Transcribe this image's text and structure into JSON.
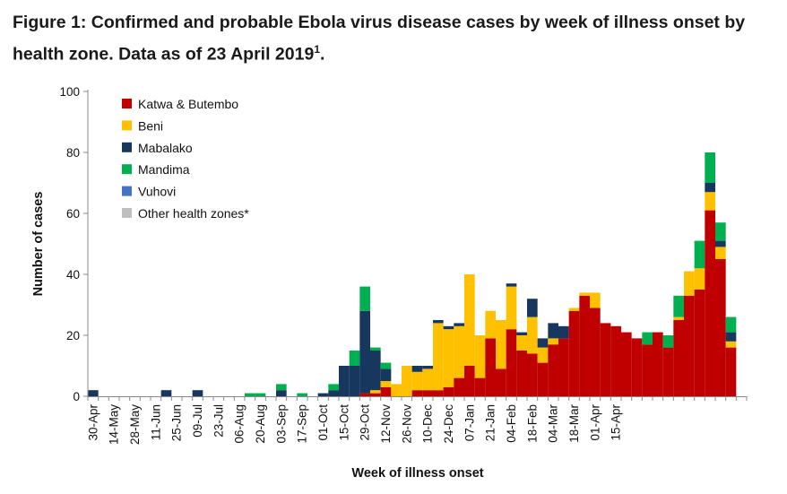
{
  "figure": {
    "title_main": "Figure 1: Confirmed and probable Ebola virus disease cases by week of illness onset by health zone. Data as of 23 April 2019",
    "title_sup": "1",
    "title_end": "."
  },
  "chart_data": {
    "type": "bar",
    "stacked": true,
    "xlabel": "Week of illness onset",
    "ylabel": "Number of cases",
    "ylim": [
      0,
      100
    ],
    "yticks": [
      0,
      20,
      40,
      60,
      80,
      100
    ],
    "tick_labels": [
      "30-Apr",
      "14-May",
      "28-May",
      "11-Jun",
      "25-Jun",
      "09-Jul",
      "23-Jul",
      "06-Aug",
      "20-Aug",
      "03-Sep",
      "17-Sep",
      "01-Oct",
      "15-Oct",
      "29-Oct",
      "12-Nov",
      "26-Nov",
      "10-Dec",
      "24-Dec",
      "07-Jan",
      "21-Jan",
      "04-Feb",
      "18-Feb",
      "04-Mar",
      "18-Mar",
      "01-Apr",
      "15-Apr"
    ],
    "tick_every": 2,
    "legend_position": "top-left",
    "series": [
      {
        "name": "Katwa & Butembo",
        "color": "#c00000",
        "values": [
          0,
          0,
          0,
          0,
          0,
          0,
          0,
          0,
          0,
          0,
          0,
          0,
          0,
          0,
          0,
          0,
          0,
          0,
          0,
          0,
          0,
          0,
          0,
          0,
          0,
          0,
          1,
          1,
          3,
          0,
          0,
          2,
          2,
          2,
          3,
          6,
          10,
          6,
          19,
          9,
          22,
          15,
          14,
          11,
          17,
          19,
          28,
          33,
          29,
          24,
          23,
          21,
          19,
          17,
          21,
          16,
          25,
          33,
          35,
          61,
          45,
          16,
          0
        ]
      },
      {
        "name": "Beni",
        "color": "#ffc000",
        "values": [
          0,
          0,
          0,
          0,
          0,
          0,
          0,
          0,
          0,
          0,
          0,
          0,
          0,
          0,
          0,
          0,
          0,
          0,
          0,
          0,
          0,
          0,
          0,
          0,
          0,
          0,
          0,
          1,
          2,
          4,
          10,
          6,
          7,
          22,
          19,
          17,
          30,
          14,
          9,
          16,
          14,
          5,
          12,
          5,
          2,
          0,
          1,
          1,
          5,
          0,
          0,
          0,
          0,
          0,
          0,
          0,
          1,
          8,
          7,
          6,
          4,
          2,
          0
        ]
      },
      {
        "name": "Mabalako",
        "color": "#17375e",
        "values": [
          2,
          0,
          0,
          0,
          0,
          0,
          0,
          2,
          0,
          0,
          2,
          0,
          0,
          0,
          0,
          0,
          0,
          0,
          2,
          0,
          0,
          0,
          1,
          2,
          10,
          10,
          27,
          13,
          4,
          0,
          0,
          2,
          1,
          1,
          1,
          1,
          0,
          0,
          0,
          0,
          1,
          1,
          6,
          3,
          5,
          4,
          0,
          0,
          0,
          0,
          0,
          0,
          0,
          0,
          0,
          0,
          0,
          0,
          0,
          3,
          2,
          3,
          0
        ]
      },
      {
        "name": "Mandima",
        "color": "#00b050",
        "values": [
          0,
          0,
          0,
          0,
          0,
          0,
          0,
          0,
          0,
          0,
          0,
          0,
          0,
          0,
          0,
          1,
          1,
          0,
          2,
          0,
          1,
          0,
          0,
          2,
          0,
          5,
          8,
          1,
          2,
          0,
          0,
          0,
          0,
          0,
          0,
          0,
          0,
          0,
          0,
          0,
          0,
          0,
          0,
          0,
          0,
          0,
          0,
          0,
          0,
          0,
          0,
          0,
          0,
          4,
          0,
          4,
          7,
          0,
          9,
          10,
          6,
          5,
          0
        ]
      },
      {
        "name": "Vuhovi",
        "color": "#4472c4",
        "values": [
          0,
          0,
          0,
          0,
          0,
          0,
          0,
          0,
          0,
          0,
          0,
          0,
          0,
          0,
          0,
          0,
          0,
          0,
          0,
          0,
          0,
          0,
          0,
          0,
          0,
          0,
          0,
          0,
          0,
          0,
          0,
          0,
          0,
          0,
          0,
          0,
          0,
          0,
          0,
          0,
          0,
          0,
          0,
          0,
          0,
          0,
          0,
          0,
          0,
          0,
          0,
          0,
          0,
          0,
          0,
          0,
          0,
          0,
          0,
          0,
          0,
          0,
          0
        ]
      },
      {
        "name": "Other health zones*",
        "color": "#bfbfbf",
        "values": [
          0,
          0,
          0,
          0,
          0,
          0,
          0,
          0,
          0,
          0,
          0,
          0,
          0,
          0,
          0,
          0,
          0,
          0,
          0,
          0,
          0,
          0,
          0,
          0,
          0,
          0,
          0,
          0,
          0,
          0,
          0,
          0,
          0,
          0,
          0,
          0,
          0,
          0,
          0,
          0,
          0,
          0,
          0,
          0,
          0,
          0,
          0,
          0,
          0,
          0,
          0,
          0,
          0,
          0,
          0,
          0,
          0,
          0,
          0,
          0,
          0,
          0,
          0
        ]
      }
    ]
  }
}
